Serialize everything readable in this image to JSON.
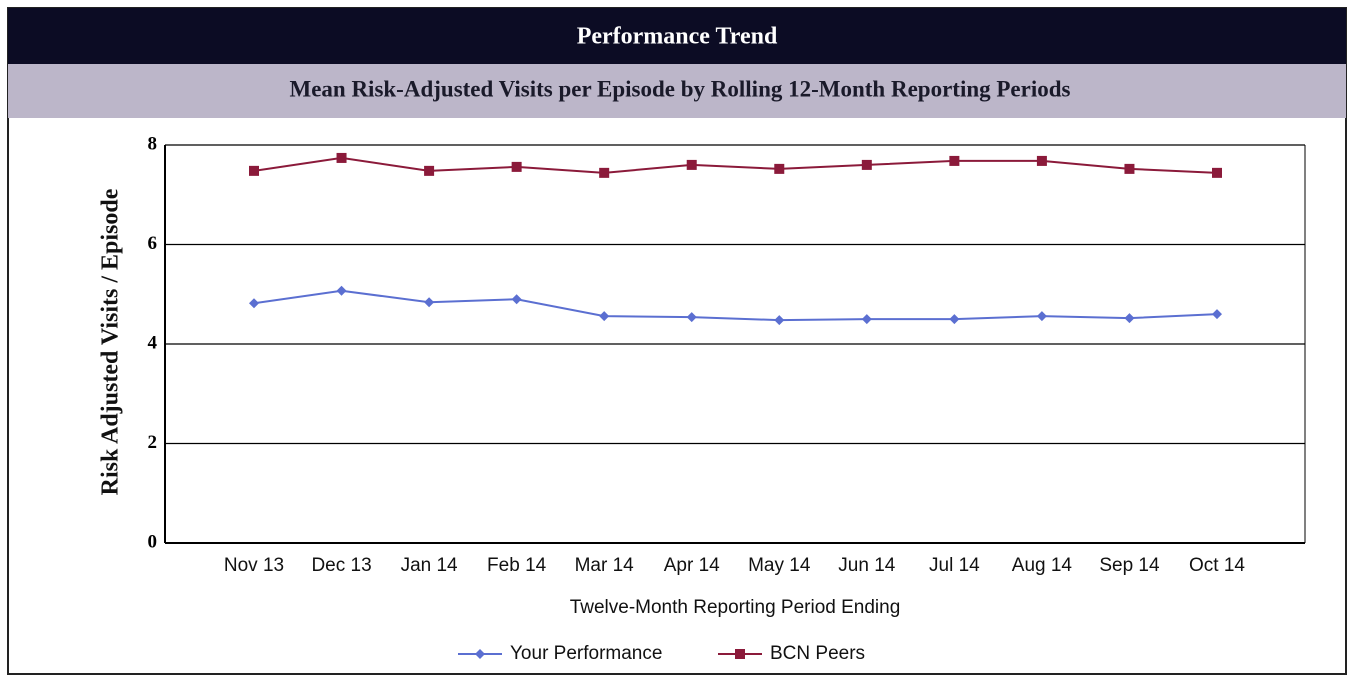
{
  "header": {
    "title": "Performance Trend"
  },
  "chart_data": {
    "type": "line",
    "title": "Mean Risk-Adjusted Visits per Episode by Rolling 12-Month Reporting Periods",
    "x_label": "Twelve-Month Reporting Period Ending",
    "y_label": "Risk Adjusted Visits / Episode",
    "categories": [
      "Nov 13",
      "Dec 13",
      "Jan 14",
      "Feb 14",
      "Mar 14",
      "Apr 14",
      "May 14",
      "Jun 14",
      "Jul 14",
      "Aug 14",
      "Sep 14",
      "Oct 14"
    ],
    "series": [
      {
        "name": "Your Performance",
        "color": "#5b6fd1",
        "values": [
          4.82,
          5.07,
          4.84,
          4.9,
          4.56,
          4.54,
          4.48,
          4.5,
          4.5,
          4.56,
          4.52,
          4.6
        ]
      },
      {
        "name": "BCN Peers",
        "color": "#8b1a3a",
        "values": [
          7.48,
          7.74,
          7.48,
          7.56,
          7.44,
          7.6,
          7.52,
          7.6,
          7.68,
          7.68,
          7.52,
          7.44
        ]
      }
    ],
    "ylim": [
      0,
      8
    ],
    "yticks": [
      0,
      2,
      4,
      6,
      8
    ],
    "grid": true,
    "legend": "bottom"
  }
}
